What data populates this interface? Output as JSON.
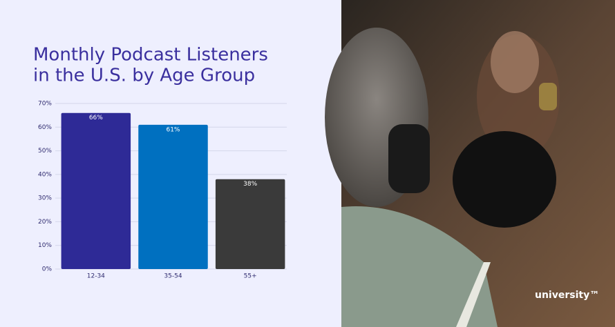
{
  "chart_data": {
    "type": "bar",
    "title": [
      "Monthly Podcast Listeners",
      "in the U.S. by Age Group"
    ],
    "categories": [
      "12-34",
      "35-54",
      "55+"
    ],
    "values": [
      66,
      61,
      38
    ],
    "value_labels": [
      "66%",
      "61%",
      "38%"
    ],
    "colors": [
      "#2e2a96",
      "#0070c0",
      "#3a3a3a"
    ],
    "ylim": [
      0,
      70
    ],
    "yticks": [
      {
        "value": 0,
        "label": "0%"
      },
      {
        "value": 10,
        "label": "10%"
      },
      {
        "value": 20,
        "label": "20%"
      },
      {
        "value": 30,
        "label": "30%"
      },
      {
        "value": 40,
        "label": "40%"
      },
      {
        "value": 50,
        "label": "50%"
      },
      {
        "value": 60,
        "label": "60%"
      },
      {
        "value": 70,
        "label": "70%"
      }
    ],
    "grid": true
  },
  "brand": "university™"
}
